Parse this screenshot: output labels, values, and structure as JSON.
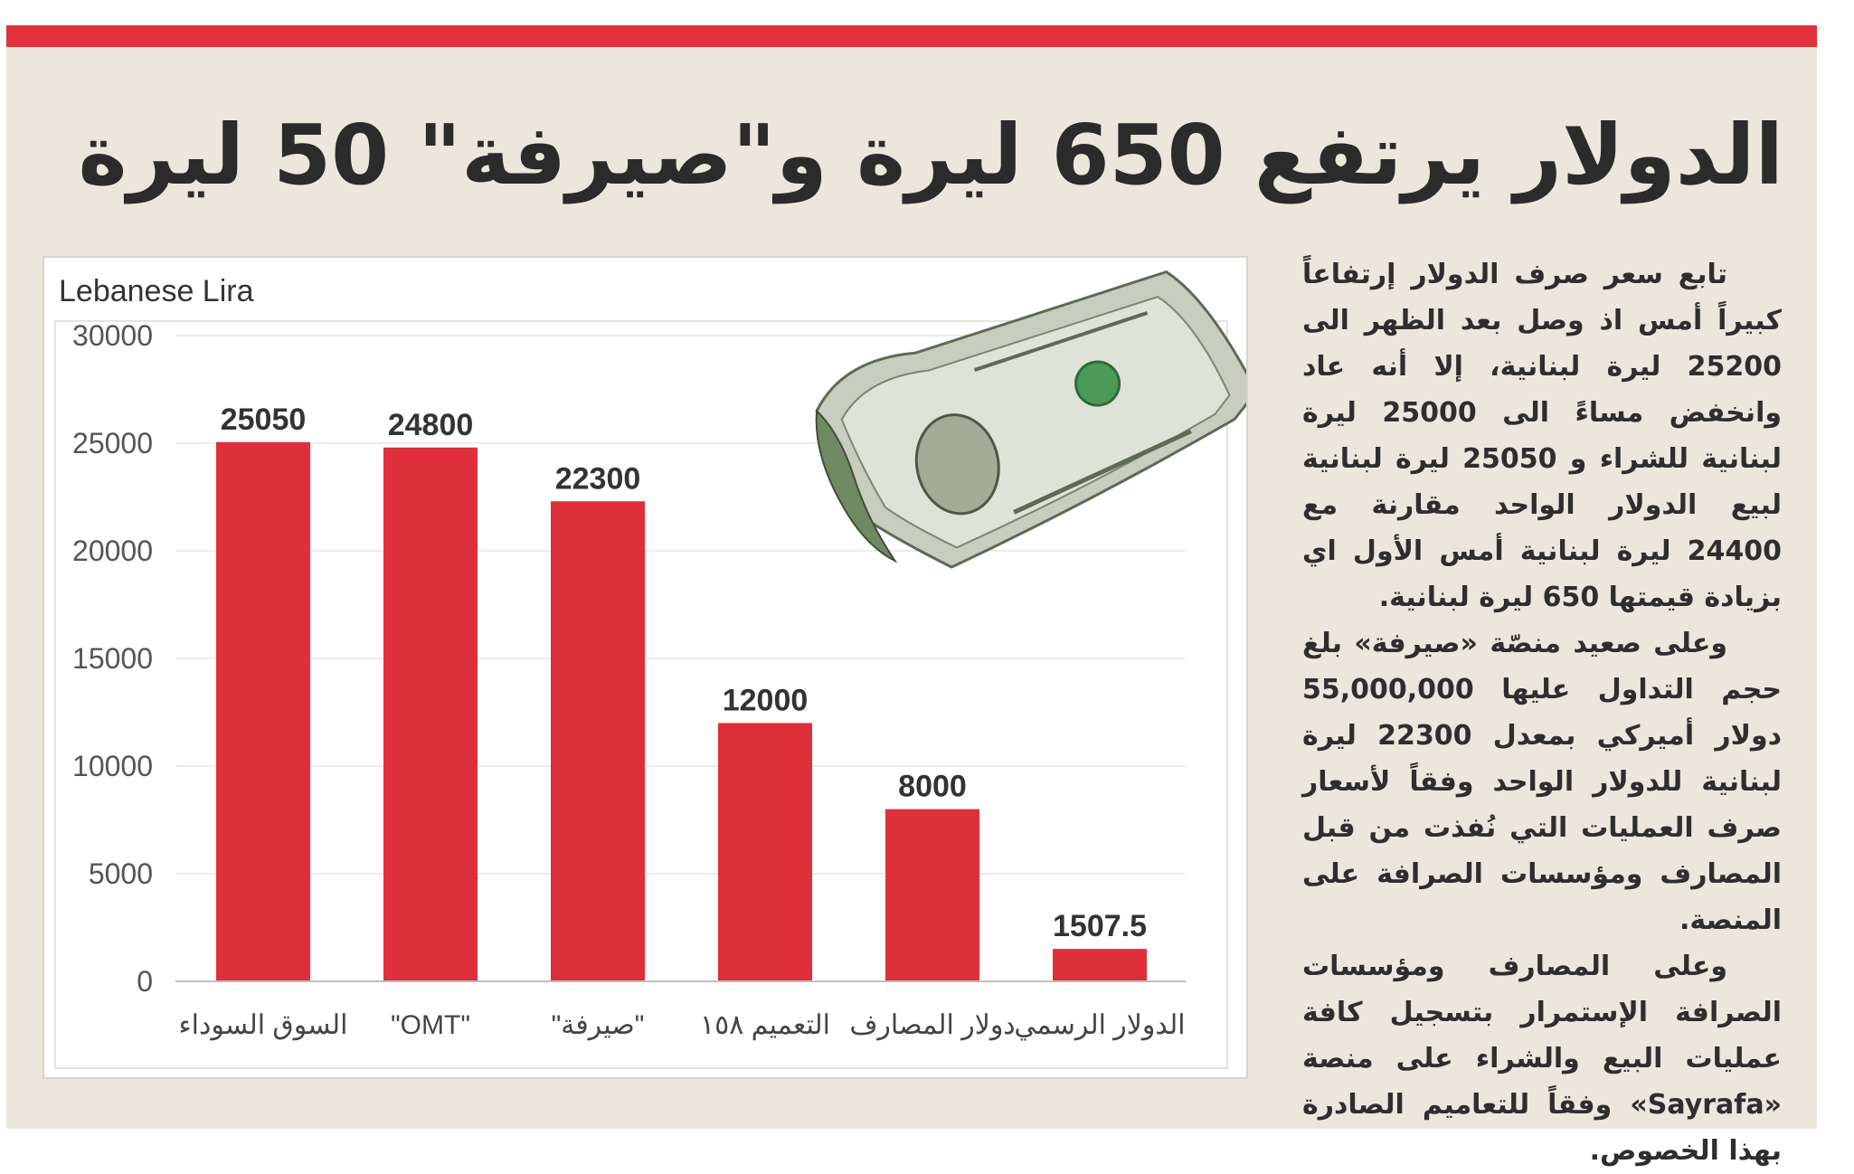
{
  "article": {
    "headline": "الدولار يرتفع 650 ليرة و\"صيرفة\" 50 ليرة",
    "paragraphs": [
      "تابع سعر صرف الدولار إرتفاعاً كبيراً أمس اذ وصل بعد الظهر الى 25200 ليرة لبنانية، إلا أنه عاد وانخفض مساءً الى 25000 ليرة لبنانية للشراء و 25050 ليرة لبنانية لبيع الدولار الواحد مقارنة مع 24400 ليرة لبنانية أمس الأول اي بزيادة قيمتها 650 ليرة لبنانية.",
      "وعلى صعيد منصّة «صيرفة» بلغ حجم التداول عليها 55,000,000 دولار أميركي بمعدل 22300 ليرة لبنانية للدولار الواحد وفقاً لأسعار صرف العمليات التي نُفذت من قبل المصارف ومؤسسات الصرافة على المنصة.",
      "وعلى المصارف ومؤسسات الصرافة الإستمرار بتسجيل كافة عمليات البيع والشراء على منصة «Sayrafa» وفقاً للتعاميم الصادرة بهذا الخصوص."
    ]
  },
  "colors": {
    "accent_bar": "#e1313b",
    "bar_fill": "#de303a",
    "panel_bg": "#ebe7dc"
  },
  "chart_data": {
    "type": "bar",
    "ylabel": "Lebanese Lira",
    "ylim": [
      0,
      30000
    ],
    "yticks": [
      "0",
      "5000",
      "10000",
      "15000",
      "20000",
      "25000",
      "30000"
    ],
    "categories": [
      "السوق السوداء",
      "\"OMT\"",
      "\"صيرفة\"",
      "التعميم ١٥٨",
      "دولار المصارف",
      "الدولار الرسمي"
    ],
    "values": [
      25050,
      24800,
      22300,
      12000,
      8000,
      1507.5
    ],
    "data_labels": [
      "25050",
      "24800",
      "22300",
      "12000",
      "8000",
      "1507.5"
    ],
    "grid": true,
    "legend": "none",
    "decoration": "dollar-bill-image"
  }
}
